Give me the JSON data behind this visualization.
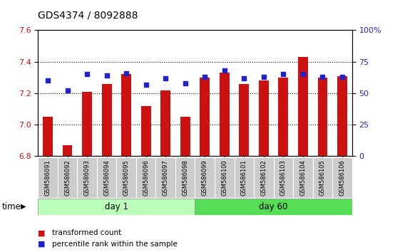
{
  "title": "GDS4374 / 8092888",
  "samples": [
    "GSM586091",
    "GSM586092",
    "GSM586093",
    "GSM586094",
    "GSM586095",
    "GSM586096",
    "GSM586097",
    "GSM586098",
    "GSM586099",
    "GSM586100",
    "GSM586101",
    "GSM586102",
    "GSM586103",
    "GSM586104",
    "GSM586105",
    "GSM586106"
  ],
  "transformed_count": [
    7.05,
    6.87,
    7.21,
    7.26,
    7.32,
    7.12,
    7.22,
    7.05,
    7.3,
    7.33,
    7.26,
    7.28,
    7.3,
    7.43,
    7.3,
    7.31
  ],
  "percentile": [
    60,
    52,
    65,
    64,
    66,
    57,
    62,
    58,
    63,
    68,
    62,
    63,
    65,
    65,
    63,
    63
  ],
  "ylim_left": [
    6.8,
    7.6
  ],
  "ylim_right": [
    0,
    100
  ],
  "yticks_left": [
    6.8,
    7.0,
    7.2,
    7.4,
    7.6
  ],
  "yticks_right": [
    0,
    25,
    50,
    75,
    100
  ],
  "ytick_labels_right": [
    "0",
    "25",
    "50",
    "75",
    "100%"
  ],
  "bar_color": "#cc1111",
  "dot_color": "#2222cc",
  "bar_bottom": 6.8,
  "day1_count": 8,
  "day1_label": "day 1",
  "day60_label": "day 60",
  "day1_color": "#bbffbb",
  "day60_color": "#55dd55",
  "sample_box_color": "#cccccc",
  "legend_red_label": "transformed count",
  "legend_blue_label": "percentile rank within the sample",
  "time_label": "time",
  "title_fontsize": 10,
  "tick_fontsize": 8,
  "label_fontsize": 6,
  "group_fontsize": 8.5
}
